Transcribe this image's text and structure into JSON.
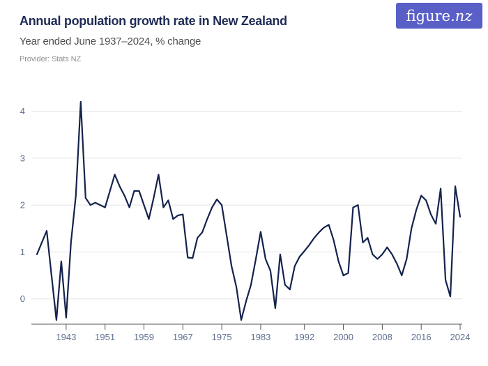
{
  "header": {
    "title": "Annual population growth rate in New Zealand",
    "subtitle": "Year ended June 1937–2024, % change",
    "provider": "Provider: Stats NZ",
    "logo_text_main": "figure.",
    "logo_text_suffix": "nz",
    "logo_bg_color": "#5a5fc7",
    "logo_text_color": "#ffffff"
  },
  "chart_data": {
    "type": "line",
    "title": "Annual population growth rate in New Zealand",
    "subtitle": "Year ended June 1937–2024, % change",
    "xlabel": "",
    "ylabel": "",
    "x": [
      1937,
      1938,
      1939,
      1940,
      1941,
      1942,
      1943,
      1944,
      1945,
      1946,
      1947,
      1948,
      1949,
      1950,
      1951,
      1952,
      1953,
      1954,
      1955,
      1956,
      1957,
      1958,
      1959,
      1960,
      1961,
      1962,
      1963,
      1964,
      1965,
      1966,
      1967,
      1968,
      1969,
      1970,
      1971,
      1972,
      1973,
      1974,
      1975,
      1976,
      1977,
      1978,
      1979,
      1980,
      1981,
      1982,
      1983,
      1984,
      1985,
      1986,
      1987,
      1988,
      1989,
      1990,
      1991,
      1992,
      1993,
      1994,
      1995,
      1996,
      1997,
      1998,
      1999,
      2000,
      2001,
      2002,
      2003,
      2004,
      2005,
      2006,
      2007,
      2008,
      2009,
      2010,
      2011,
      2012,
      2013,
      2014,
      2015,
      2016,
      2017,
      2018,
      2019,
      2020,
      2021,
      2022,
      2023,
      2024
    ],
    "values": [
      0.95,
      1.2,
      1.45,
      0.5,
      -0.45,
      0.8,
      -0.4,
      1.2,
      2.2,
      4.2,
      2.15,
      2.0,
      2.05,
      2.0,
      1.95,
      2.3,
      2.65,
      2.4,
      2.2,
      1.95,
      2.3,
      2.3,
      2.0,
      1.7,
      2.15,
      2.65,
      1.95,
      2.1,
      1.7,
      1.78,
      1.8,
      0.88,
      0.87,
      1.3,
      1.42,
      1.7,
      1.95,
      2.12,
      2.0,
      1.35,
      0.7,
      0.25,
      -0.45,
      -0.05,
      0.3,
      0.85,
      1.43,
      0.85,
      0.6,
      -0.2,
      0.95,
      0.3,
      0.2,
      0.7,
      0.9,
      1.02,
      1.15,
      1.3,
      1.42,
      1.52,
      1.58,
      1.25,
      0.8,
      0.5,
      0.55,
      1.95,
      2.0,
      1.2,
      1.3,
      0.95,
      0.85,
      0.95,
      1.1,
      0.95,
      0.75,
      0.5,
      0.85,
      1.5,
      1.9,
      2.2,
      2.1,
      1.8,
      1.6,
      2.35,
      0.4,
      0.05,
      2.4,
      1.75
    ],
    "xlim": [
      1937,
      2024
    ],
    "ylim": [
      -0.54,
      4.45
    ],
    "x_tick_labels": [
      "1943",
      "1951",
      "1959",
      "1967",
      "1975",
      "1983",
      "1992",
      "2000",
      "2008",
      "2016",
      "2024"
    ],
    "x_tick_years": [
      1943,
      1951,
      1959,
      1967,
      1975,
      1983,
      1992,
      2000,
      2008,
      2016,
      2024
    ],
    "y_tick_labels": [
      "0",
      "1",
      "2",
      "3",
      "4"
    ],
    "y_tick_values": [
      0,
      1,
      2,
      3,
      4
    ],
    "grid": "horizontal",
    "legend_position": "none",
    "line_color": "#14234d",
    "grid_color": "#e4e4e4",
    "axis_color": "#555555",
    "tick_label_color": "#5e6e8e"
  }
}
